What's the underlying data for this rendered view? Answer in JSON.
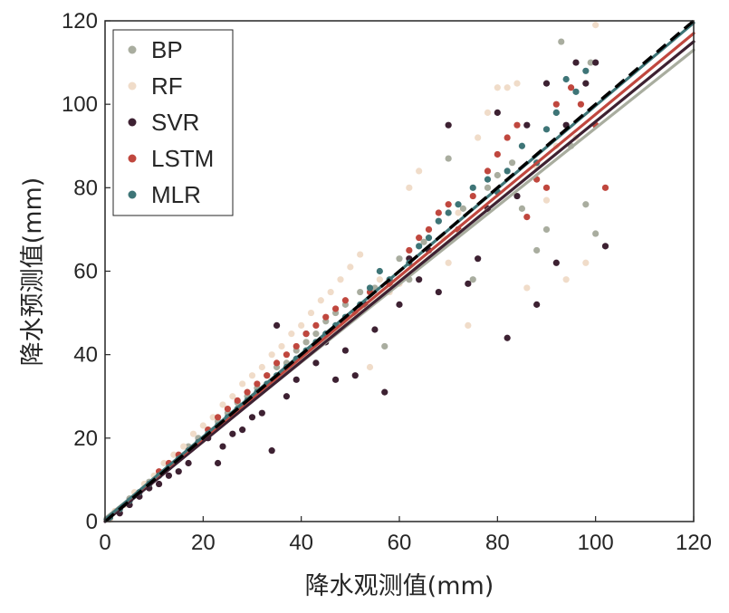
{
  "chart_data": {
    "type": "scatter",
    "title": "",
    "xlabel": "降水观测值(mm)",
    "ylabel": "降水预测值(mm)",
    "xlim": [
      0,
      120
    ],
    "ylim": [
      0,
      120
    ],
    "xticks": [
      "0",
      "20",
      "40",
      "60",
      "80",
      "100",
      "120"
    ],
    "yticks": [
      "0",
      "20",
      "40",
      "60",
      "80",
      "100",
      "120"
    ],
    "grid": false,
    "legend_position": "top-left",
    "reference_line": {
      "style": "dashed",
      "color": "#000000",
      "x": [
        0,
        120
      ],
      "y": [
        0,
        120
      ]
    },
    "series": [
      {
        "name": "BP",
        "color": "#a9ad9f",
        "fit": {
          "x": [
            0,
            120
          ],
          "y": [
            0.8,
            113.0
          ]
        },
        "points": [
          [
            1,
            1
          ],
          [
            3,
            3
          ],
          [
            5,
            5.5
          ],
          [
            7,
            7
          ],
          [
            9,
            9.5
          ],
          [
            11,
            11
          ],
          [
            13,
            13.5
          ],
          [
            15,
            15
          ],
          [
            17,
            18
          ],
          [
            19,
            20
          ],
          [
            21,
            22
          ],
          [
            23,
            24
          ],
          [
            25,
            26
          ],
          [
            27,
            28.5
          ],
          [
            29,
            30
          ],
          [
            31,
            32
          ],
          [
            33,
            35
          ],
          [
            35,
            37
          ],
          [
            37,
            38
          ],
          [
            39,
            41
          ],
          [
            41,
            43
          ],
          [
            43,
            45
          ],
          [
            45,
            48
          ],
          [
            47,
            50
          ],
          [
            49,
            52
          ],
          [
            52,
            55
          ],
          [
            55,
            56
          ],
          [
            57,
            42
          ],
          [
            60,
            63
          ],
          [
            62,
            58
          ],
          [
            65,
            67
          ],
          [
            68,
            72
          ],
          [
            70,
            87
          ],
          [
            73,
            75
          ],
          [
            75,
            58
          ],
          [
            78,
            80
          ],
          [
            80,
            83
          ],
          [
            83,
            86
          ],
          [
            85,
            75
          ],
          [
            88,
            65
          ],
          [
            90,
            70
          ],
          [
            92,
            98
          ],
          [
            93,
            115
          ],
          [
            95,
            90
          ],
          [
            98,
            76
          ],
          [
            99,
            110
          ],
          [
            100,
            69
          ]
        ]
      },
      {
        "name": "RF",
        "color": "#f0dcc9",
        "fit": {
          "x": [
            0,
            120
          ],
          "y": [
            0.3,
            115.0
          ]
        },
        "points": [
          [
            1,
            0.5
          ],
          [
            2,
            2.5
          ],
          [
            4,
            4
          ],
          [
            6,
            7
          ],
          [
            8,
            9
          ],
          [
            10,
            11
          ],
          [
            12,
            14
          ],
          [
            14,
            16
          ],
          [
            16,
            18
          ],
          [
            18,
            21
          ],
          [
            20,
            23
          ],
          [
            22,
            25
          ],
          [
            24,
            28
          ],
          [
            26,
            30
          ],
          [
            28,
            33
          ],
          [
            30,
            35
          ],
          [
            32,
            37
          ],
          [
            34,
            40
          ],
          [
            36,
            42
          ],
          [
            38,
            45
          ],
          [
            40,
            47
          ],
          [
            42,
            50
          ],
          [
            44,
            53
          ],
          [
            46,
            55
          ],
          [
            48,
            58
          ],
          [
            50,
            61
          ],
          [
            52,
            64
          ],
          [
            54,
            37
          ],
          [
            56,
            58
          ],
          [
            58,
            55
          ],
          [
            60,
            57
          ],
          [
            62,
            80
          ],
          [
            64,
            84
          ],
          [
            66,
            70
          ],
          [
            69,
            68
          ],
          [
            70,
            62
          ],
          [
            72,
            74
          ],
          [
            74,
            47
          ],
          [
            76,
            92
          ],
          [
            78,
            98
          ],
          [
            80,
            104
          ],
          [
            82,
            104
          ],
          [
            84,
            105
          ],
          [
            86,
            56
          ],
          [
            88,
            85
          ],
          [
            90,
            77
          ],
          [
            92,
            90
          ],
          [
            94,
            58
          ],
          [
            96,
            92
          ],
          [
            98,
            62
          ],
          [
            100,
            119
          ]
        ]
      },
      {
        "name": "SVR",
        "color": "#3d2132",
        "fit": {
          "x": [
            0,
            120
          ],
          "y": [
            0.0,
            115.0
          ]
        },
        "points": [
          [
            1,
            1
          ],
          [
            3,
            2
          ],
          [
            5,
            4
          ],
          [
            7,
            6
          ],
          [
            9,
            8
          ],
          [
            11,
            9
          ],
          [
            13,
            11
          ],
          [
            15,
            12
          ],
          [
            17,
            14
          ],
          [
            19,
            19
          ],
          [
            21,
            20
          ],
          [
            23,
            14
          ],
          [
            24,
            18
          ],
          [
            26,
            21
          ],
          [
            28,
            22
          ],
          [
            30,
            25
          ],
          [
            32,
            26
          ],
          [
            34,
            17
          ],
          [
            35,
            47
          ],
          [
            37,
            30
          ],
          [
            39,
            34
          ],
          [
            41,
            45
          ],
          [
            43,
            38
          ],
          [
            45,
            43
          ],
          [
            47,
            34
          ],
          [
            49,
            41
          ],
          [
            51,
            35
          ],
          [
            53,
            52
          ],
          [
            55,
            46
          ],
          [
            57,
            31
          ],
          [
            60,
            52
          ],
          [
            62,
            63
          ],
          [
            64,
            58
          ],
          [
            66,
            65
          ],
          [
            68,
            55
          ],
          [
            70,
            95
          ],
          [
            72,
            70
          ],
          [
            74,
            57
          ],
          [
            76,
            63
          ],
          [
            78,
            75
          ],
          [
            80,
            98
          ],
          [
            82,
            44
          ],
          [
            84,
            78
          ],
          [
            86,
            95
          ],
          [
            88,
            52
          ],
          [
            90,
            105
          ],
          [
            92,
            62
          ],
          [
            94,
            95
          ],
          [
            96,
            110
          ],
          [
            98,
            105
          ],
          [
            100,
            110
          ],
          [
            102,
            66
          ]
        ]
      },
      {
        "name": "LSTM",
        "color": "#c0473e",
        "fit": {
          "x": [
            0,
            120
          ],
          "y": [
            0.5,
            117.0
          ]
        },
        "points": [
          [
            1,
            1
          ],
          [
            3,
            3
          ],
          [
            5,
            5
          ],
          [
            7,
            7
          ],
          [
            9,
            9
          ],
          [
            11,
            12
          ],
          [
            13,
            14
          ],
          [
            15,
            16
          ],
          [
            17,
            17
          ],
          [
            19,
            19
          ],
          [
            21,
            22
          ],
          [
            23,
            25
          ],
          [
            25,
            27
          ],
          [
            27,
            29
          ],
          [
            29,
            31
          ],
          [
            31,
            33
          ],
          [
            33,
            35
          ],
          [
            35,
            38
          ],
          [
            37,
            40
          ],
          [
            39,
            42
          ],
          [
            41,
            45
          ],
          [
            43,
            47
          ],
          [
            45,
            49
          ],
          [
            47,
            51
          ],
          [
            49,
            53
          ],
          [
            51,
            50
          ],
          [
            54,
            55
          ],
          [
            58,
            57
          ],
          [
            62,
            65
          ],
          [
            64,
            68
          ],
          [
            66,
            70
          ],
          [
            68,
            74
          ],
          [
            70,
            76
          ],
          [
            72,
            70
          ],
          [
            75,
            78
          ],
          [
            78,
            84
          ],
          [
            80,
            88
          ],
          [
            82,
            92
          ],
          [
            84,
            95
          ],
          [
            86,
            73
          ],
          [
            88,
            82
          ],
          [
            90,
            80
          ],
          [
            92,
            100
          ],
          [
            95,
            104
          ],
          [
            97,
            100
          ],
          [
            100,
            95
          ],
          [
            102,
            80
          ]
        ]
      },
      {
        "name": "MLR",
        "color": "#3e7577",
        "fit": {
          "x": [
            0,
            120
          ],
          "y": [
            0.5,
            119.5
          ]
        },
        "points": [
          [
            1,
            1
          ],
          [
            3,
            3
          ],
          [
            5,
            5
          ],
          [
            7,
            7
          ],
          [
            9,
            9
          ],
          [
            11,
            11
          ],
          [
            13,
            13
          ],
          [
            15,
            15
          ],
          [
            17,
            17
          ],
          [
            19,
            19
          ],
          [
            21,
            21
          ],
          [
            23,
            23
          ],
          [
            25,
            25
          ],
          [
            27,
            27
          ],
          [
            29,
            29
          ],
          [
            31,
            31
          ],
          [
            33,
            33
          ],
          [
            35,
            35
          ],
          [
            37,
            37
          ],
          [
            39,
            39
          ],
          [
            41,
            41
          ],
          [
            43,
            43
          ],
          [
            45,
            45
          ],
          [
            47,
            47
          ],
          [
            49,
            49
          ],
          [
            52,
            52
          ],
          [
            54,
            56
          ],
          [
            56,
            60
          ],
          [
            58,
            58
          ],
          [
            62,
            62
          ],
          [
            64,
            66
          ],
          [
            66,
            68
          ],
          [
            68,
            72
          ],
          [
            70,
            74
          ],
          [
            72,
            76
          ],
          [
            75,
            80
          ],
          [
            78,
            82
          ],
          [
            80,
            79
          ],
          [
            82,
            84
          ],
          [
            85,
            90
          ],
          [
            88,
            86
          ],
          [
            90,
            94
          ],
          [
            92,
            98
          ],
          [
            94,
            106
          ],
          [
            96,
            103
          ],
          [
            98,
            108
          ]
        ]
      }
    ]
  }
}
